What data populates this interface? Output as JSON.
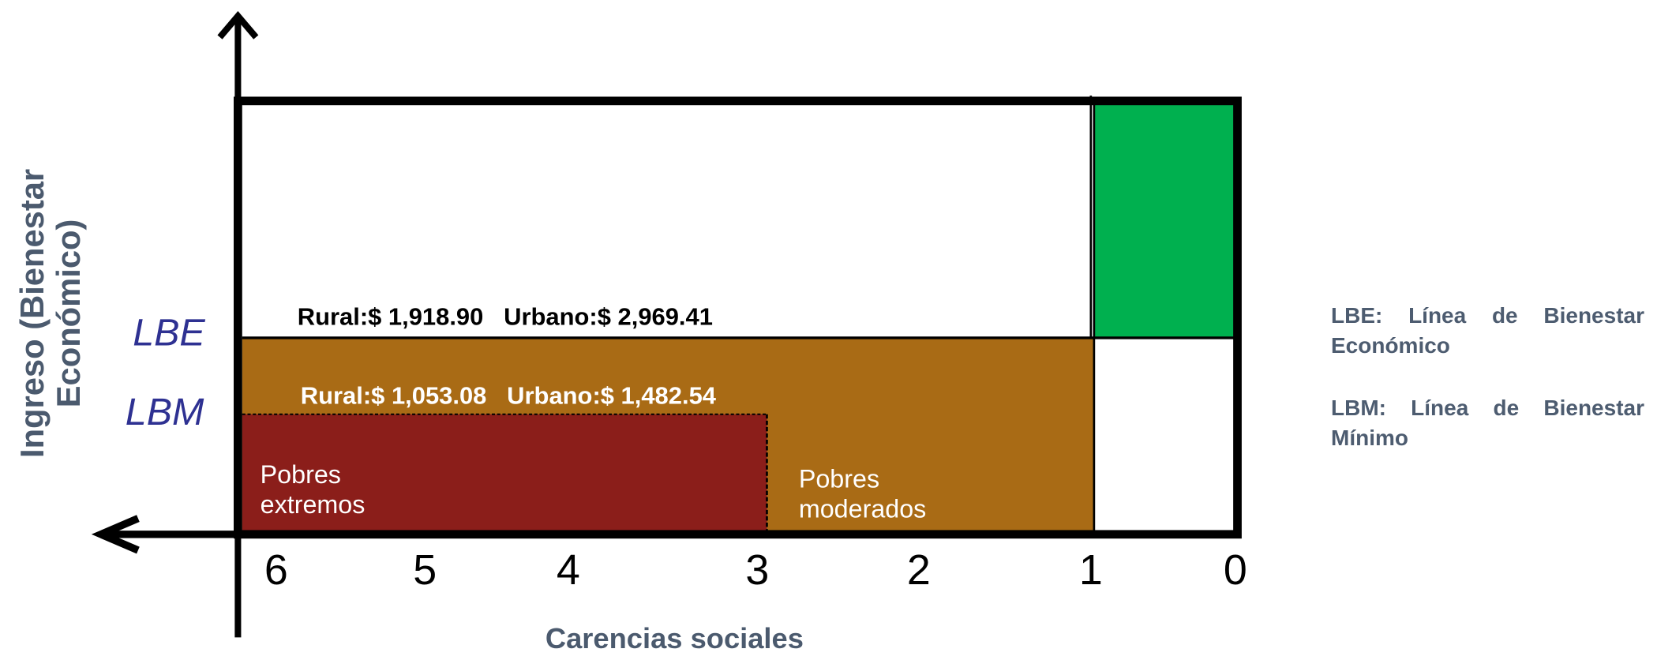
{
  "y_axis_label": [
    "Ingreso (Bienestar",
    "Económico)"
  ],
  "x_axis_label": "Carencias sociales",
  "lines": {
    "lbe": "LBE",
    "lbm": "LBM"
  },
  "thresholds": {
    "lbe": "Rural:$ 1,918.90   Urbano:$ 2,969.41",
    "lbm": "Rural:$ 1,053.08   Urbano:$ 1,482.54"
  },
  "regions": {
    "extreme": [
      "Pobres",
      "extremos"
    ],
    "moderate": [
      "Pobres",
      "moderados"
    ]
  },
  "x_ticks": [
    "6",
    "5",
    "4",
    "3",
    "2",
    "1",
    "0"
  ],
  "legend": [
    "LBE: Línea de Bienestar Económico",
    "LBM: Línea de Bienestar Mínimo"
  ]
}
